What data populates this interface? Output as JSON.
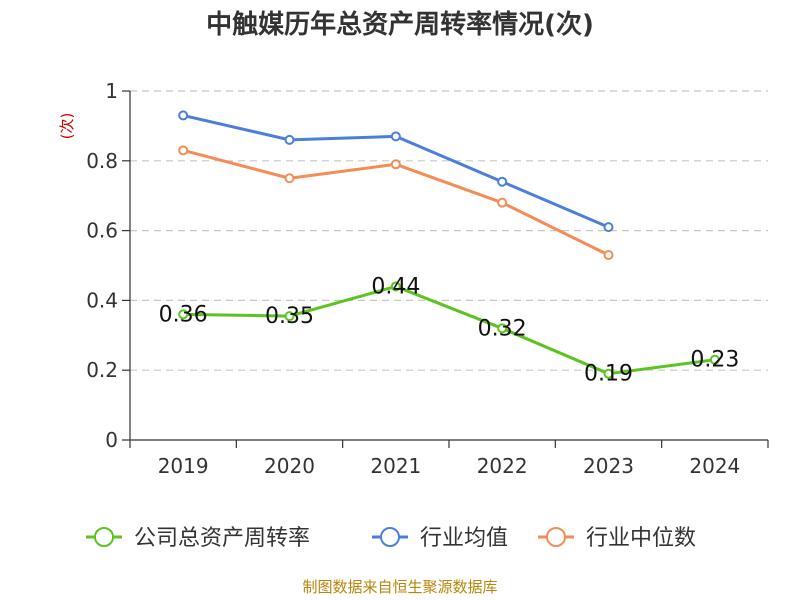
{
  "chart_data": {
    "type": "line",
    "title": "中触媒历年总资产周转率情况(次)",
    "ylabel": "(次)",
    "xlabel": "",
    "categories": [
      "2019",
      "2020",
      "2021",
      "2022",
      "2023",
      "2024"
    ],
    "ylim": [
      0,
      1
    ],
    "yticks": [
      "0",
      "0.2",
      "0.4",
      "0.6",
      "0.8",
      "1"
    ],
    "grid": true,
    "legend_position": "bottom",
    "series": [
      {
        "name": "公司总资产周转率",
        "color": "#5cc421",
        "values": [
          0.36,
          0.355,
          0.44,
          0.32,
          0.19,
          0.23
        ],
        "labels": [
          "0.36",
          "0.35",
          "0.44",
          "0.32",
          "0.19",
          "0.23"
        ]
      },
      {
        "name": "行业均值",
        "color": "#4a7fdc",
        "values": [
          0.93,
          0.86,
          0.87,
          0.74,
          0.61,
          null
        ]
      },
      {
        "name": "行业中位数",
        "color": "#f48c55",
        "values": [
          0.83,
          0.75,
          0.79,
          0.68,
          0.53,
          null
        ]
      }
    ],
    "source": "制图数据来自恒生聚源数据库"
  }
}
